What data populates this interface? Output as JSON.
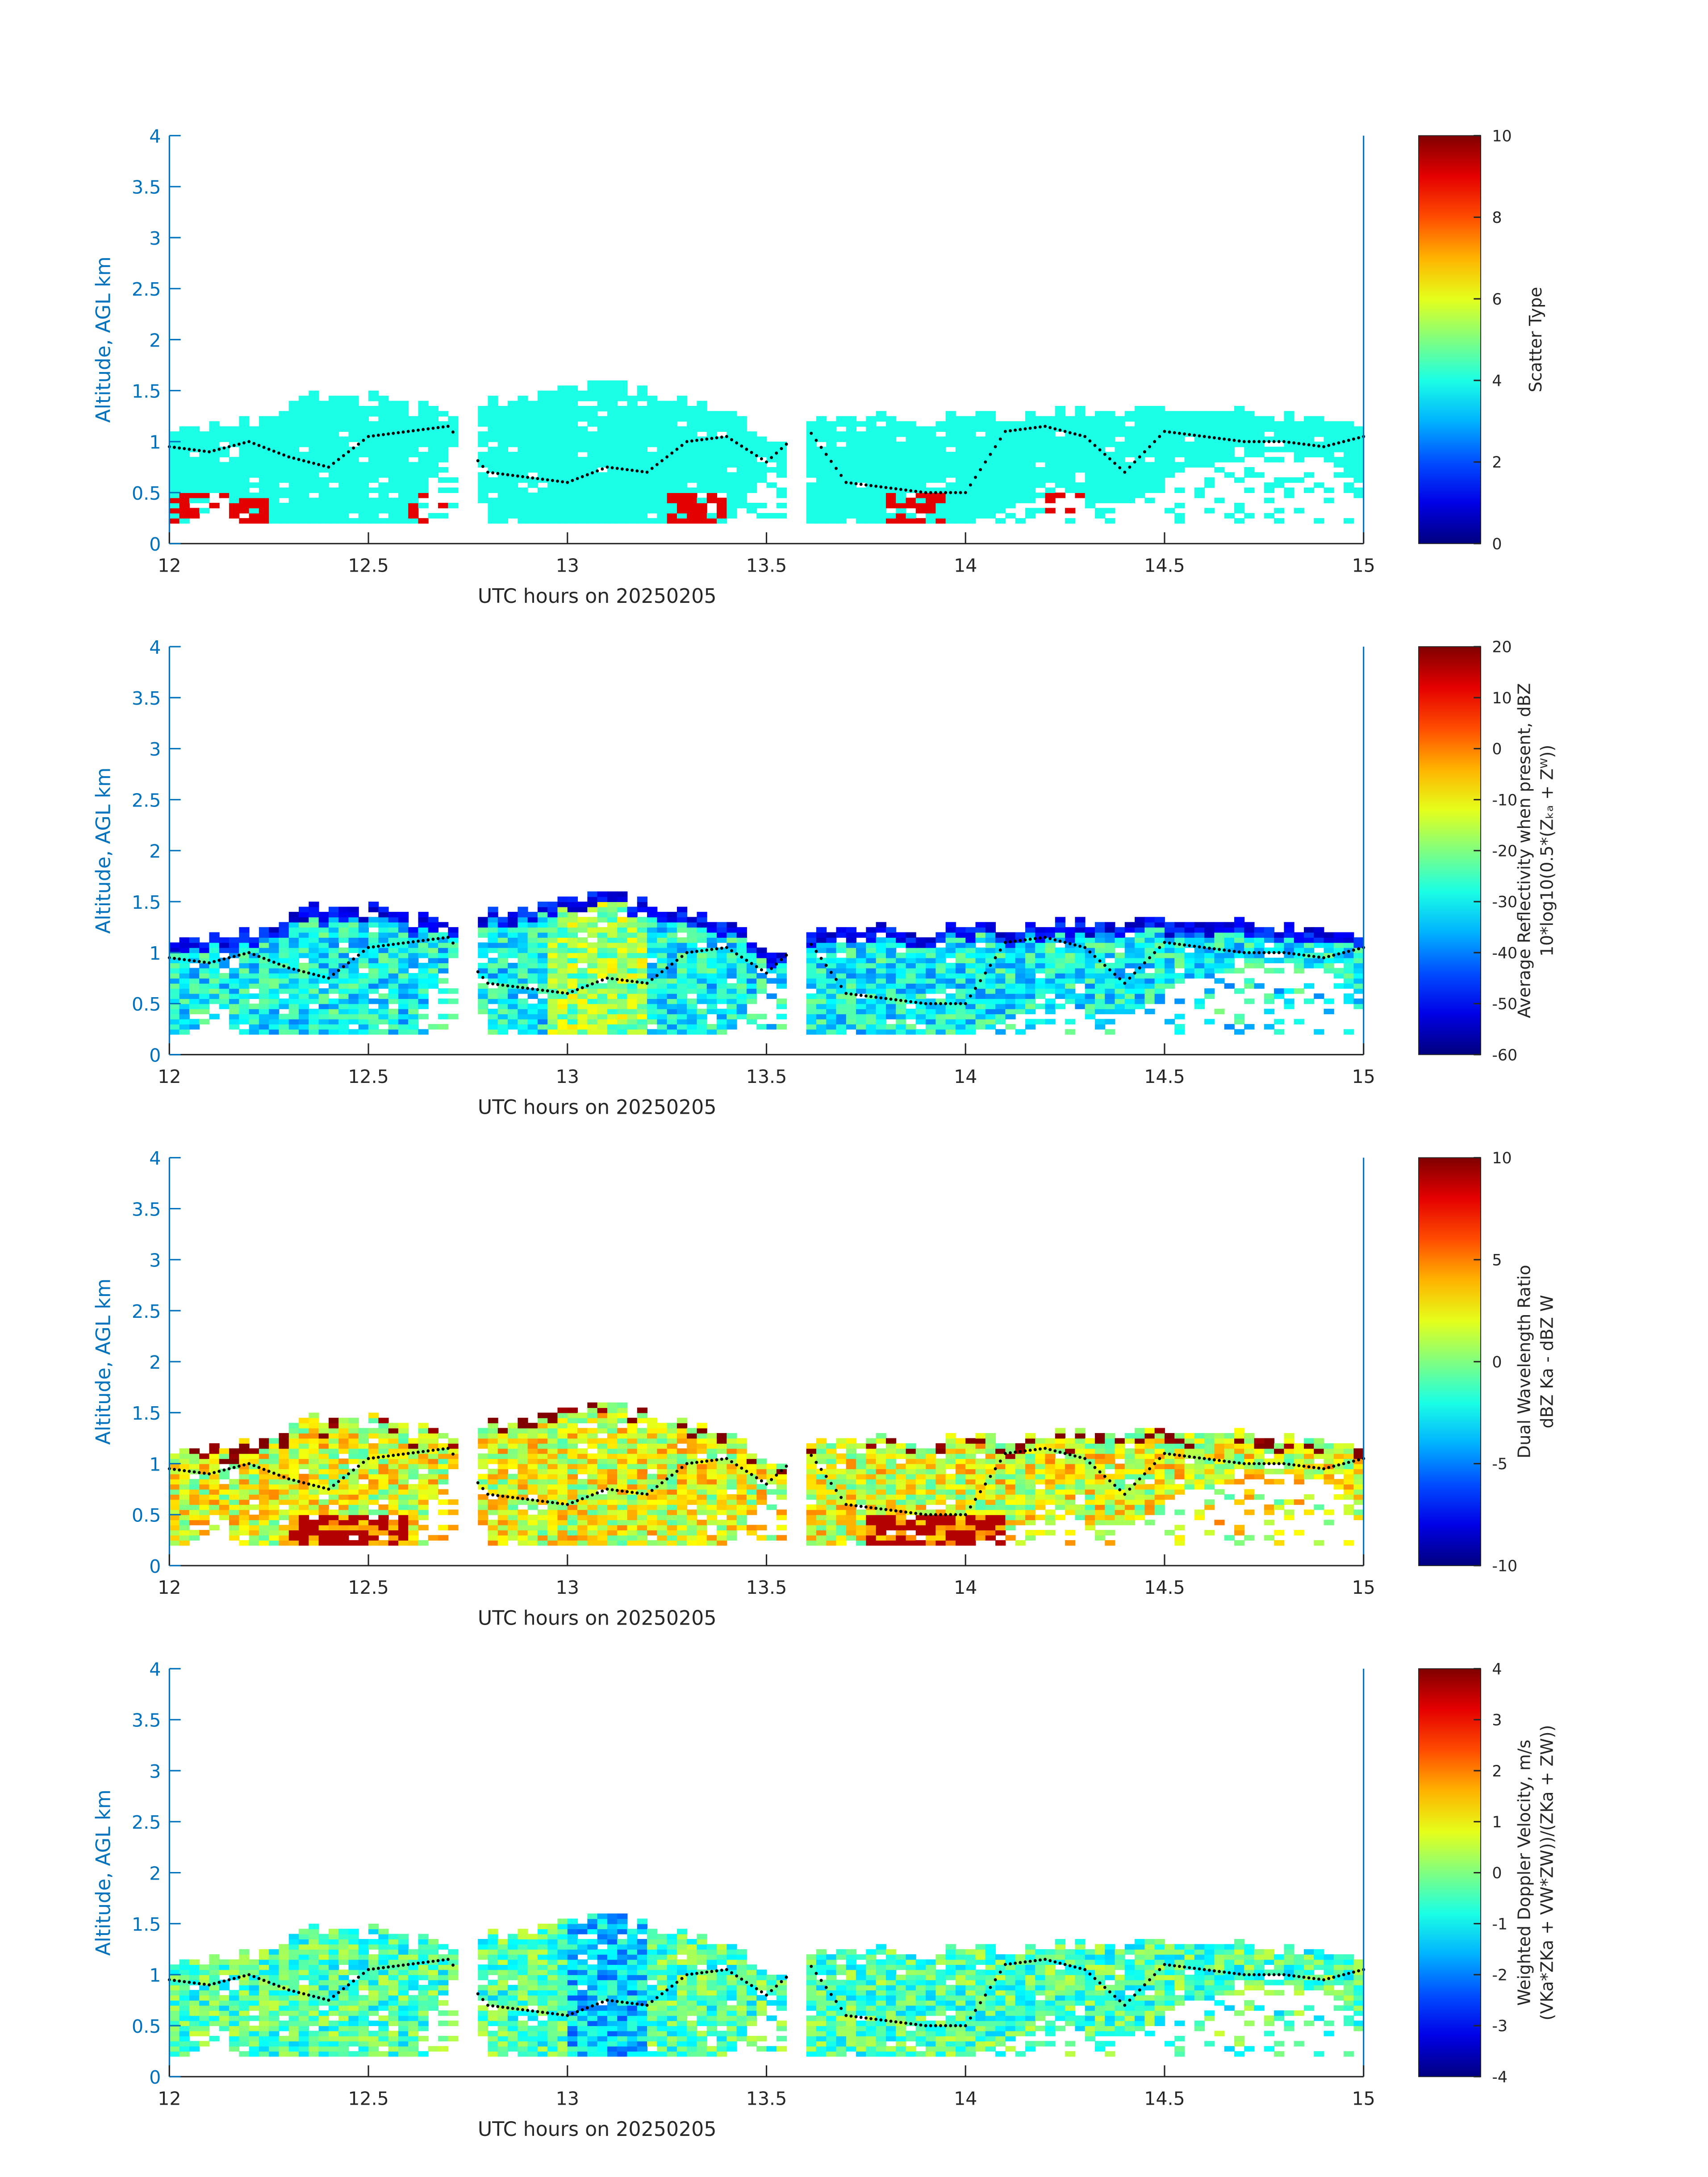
{
  "chart_data": [
    {
      "type": "heatmap",
      "field": "scatter",
      "xlabel": "UTC hours on 20250205",
      "ylabel": "Altitude, AGL km",
      "xlim": [
        12,
        15
      ],
      "ylim": [
        0,
        4
      ],
      "xticks": [
        "12",
        "12.5",
        "13",
        "13.5",
        "14",
        "14.5",
        "15"
      ],
      "yticks": [
        "0",
        "0.5",
        "1",
        "1.5",
        "2",
        "2.5",
        "3",
        "3.5",
        "4"
      ],
      "colorbar": {
        "range": [
          0,
          10
        ],
        "ticks": [
          "0",
          "2",
          "4",
          "6",
          "8",
          "10"
        ],
        "label": [
          "Scatter Type"
        ]
      }
    },
    {
      "type": "heatmap",
      "field": "refl",
      "xlabel": "UTC hours on 20250205",
      "ylabel": "Altitude, AGL km",
      "xlim": [
        12,
        15
      ],
      "ylim": [
        0,
        4
      ],
      "xticks": [
        "12",
        "12.5",
        "13",
        "13.5",
        "14",
        "14.5",
        "15"
      ],
      "yticks": [
        "0",
        "0.5",
        "1",
        "1.5",
        "2",
        "2.5",
        "3",
        "3.5",
        "4"
      ],
      "colorbar": {
        "range": [
          -60,
          20
        ],
        "ticks": [
          "-60",
          "-50",
          "-40",
          "-30",
          "-20",
          "-10",
          "0",
          "10",
          "20"
        ],
        "label": [
          "Average Reflectivity when present, dBZ",
          "10*log10(0.5*(Zₖₐ + Zᵂ))"
        ]
      }
    },
    {
      "type": "heatmap",
      "field": "dwr",
      "xlabel": "UTC hours on 20250205",
      "ylabel": "Altitude, AGL km",
      "xlim": [
        12,
        15
      ],
      "ylim": [
        0,
        4
      ],
      "xticks": [
        "12",
        "12.5",
        "13",
        "13.5",
        "14",
        "14.5",
        "15"
      ],
      "yticks": [
        "0",
        "0.5",
        "1",
        "1.5",
        "2",
        "2.5",
        "3",
        "3.5",
        "4"
      ],
      "colorbar": {
        "range": [
          -10,
          10
        ],
        "ticks": [
          "-10",
          "-5",
          "0",
          "5",
          "10"
        ],
        "label": [
          "Dual Wavelength Ratio",
          "dBZ Ka - dBZ W"
        ]
      }
    },
    {
      "type": "heatmap",
      "field": "vel",
      "xlabel": "UTC hours on 20250205",
      "ylabel": "Altitude, AGL km",
      "xlim": [
        12,
        15
      ],
      "ylim": [
        0,
        4
      ],
      "xticks": [
        "12",
        "12.5",
        "13",
        "13.5",
        "14",
        "14.5",
        "15"
      ],
      "yticks": [
        "0",
        "0.5",
        "1",
        "1.5",
        "2",
        "2.5",
        "3",
        "3.5",
        "4"
      ],
      "colorbar": {
        "range": [
          -4,
          4
        ],
        "ticks": [
          "-4",
          "-3",
          "-2",
          "-1",
          "0",
          "1",
          "2",
          "3",
          "4"
        ],
        "label": [
          "Weighted Doppler Velocity, m/s",
          "(VKa*ZKa + VW*ZW))/(ZKa + ZW))"
        ]
      }
    }
  ],
  "cloud_profile": {
    "time_hours": [
      12.0,
      12.1,
      12.2,
      12.3,
      12.4,
      12.5,
      12.6,
      12.7,
      12.8,
      12.9,
      13.0,
      13.1,
      13.2,
      13.3,
      13.4,
      13.5,
      13.6,
      13.7,
      13.8,
      13.9,
      14.0,
      14.1,
      14.2,
      14.3,
      14.4,
      14.5,
      14.6,
      14.7,
      14.8,
      14.9,
      15.0
    ],
    "cloud_top_km": [
      1.15,
      1.15,
      1.15,
      1.4,
      1.45,
      1.45,
      1.3,
      1.25,
      1.4,
      1.4,
      1.55,
      1.6,
      1.4,
      1.35,
      1.3,
      0.9,
      1.2,
      1.25,
      1.25,
      1.2,
      1.25,
      1.2,
      1.25,
      1.3,
      1.3,
      1.3,
      1.25,
      1.25,
      1.25,
      1.2,
      1.15
    ],
    "cloud_base_km": [
      0.2,
      0.5,
      0.2,
      0.2,
      0.2,
      0.2,
      0.2,
      1.0,
      0.2,
      0.2,
      0.2,
      0.2,
      0.2,
      0.2,
      0.2,
      0.7,
      0.2,
      0.2,
      0.2,
      0.2,
      0.2,
      0.3,
      0.6,
      0.4,
      0.35,
      0.6,
      0.8,
      0.8,
      0.9,
      0.8,
      0.5
    ],
    "dotted_line_km": [
      0.95,
      0.9,
      1.0,
      0.85,
      0.75,
      1.05,
      1.1,
      1.15,
      0.7,
      0.65,
      0.6,
      0.75,
      0.7,
      1.0,
      1.05,
      0.8,
      1.15,
      0.6,
      0.55,
      0.5,
      0.5,
      1.1,
      1.15,
      1.05,
      0.7,
      1.1,
      1.05,
      1.0,
      1.0,
      0.95,
      1.05
    ]
  },
  "colors": {
    "axis": "#0072BD",
    "dots": "#000000"
  }
}
